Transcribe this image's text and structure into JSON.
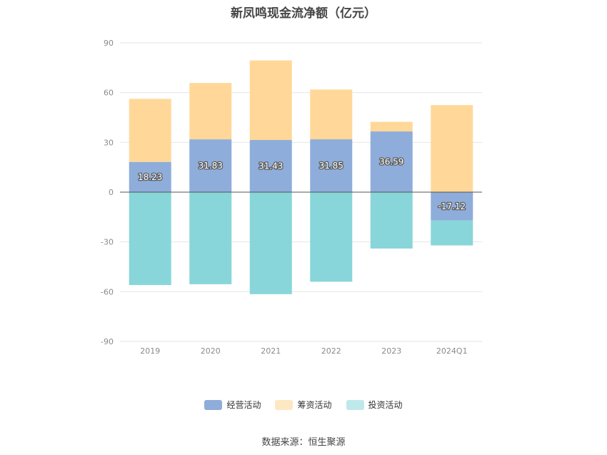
{
  "chart_data": {
    "type": "bar",
    "stacked": true,
    "title": "新凤鸣现金流净额（亿元）",
    "categories": [
      "2019",
      "2020",
      "2021",
      "2022",
      "2023",
      "2024Q1"
    ],
    "ylim": [
      -90,
      90
    ],
    "yticks": [
      90,
      60,
      30,
      0,
      -30,
      -60,
      -90
    ],
    "grid": true,
    "legend_position": "bottom",
    "series": [
      {
        "name": "经营活动",
        "color": "#8eadda",
        "values": [
          18.23,
          31.83,
          31.43,
          31.85,
          36.59,
          -17.12
        ],
        "labeled": true
      },
      {
        "name": "筹资活动",
        "color": "#ffd899",
        "values": [
          38.0,
          34.0,
          48.0,
          30.0,
          5.8,
          52.5
        ]
      },
      {
        "name": "投资活动",
        "color": "#88d6d9",
        "values": [
          -56.0,
          -55.5,
          -61.5,
          -54.0,
          -34.0,
          -15.0
        ]
      }
    ],
    "legend_colors": {
      "经营活动": "#8eadda",
      "筹资活动": "#fde8c4",
      "投资活动": "#bfe8ea"
    }
  },
  "source": "数据来源：恒生聚源"
}
